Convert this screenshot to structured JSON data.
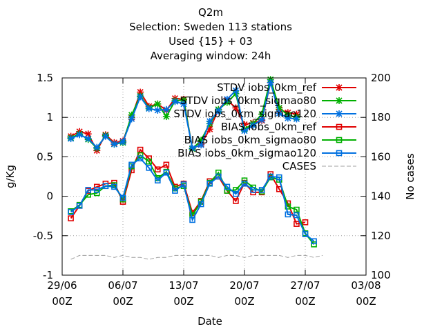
{
  "header": {
    "title": "Q2m",
    "selection": "Selection: Sweden    113 stations",
    "used": "Used {15} + 03",
    "window": "Averaging window: 24h"
  },
  "colors": {
    "red": "#e00000",
    "green": "#00b000",
    "blue": "#0070e0",
    "cases": "#a0a0a0"
  },
  "chart_data": {
    "type": "line",
    "xlabel": "Date",
    "ylabel": "g/Kg",
    "y2label": "No cases",
    "ylim": [
      -1,
      1.5
    ],
    "y2lim": [
      100,
      200
    ],
    "yticks": [
      "1.5",
      "1",
      "0.5",
      "0",
      "-0.5",
      "-1"
    ],
    "y2ticks": [
      "200",
      "180",
      "160",
      "140",
      "120",
      "100"
    ],
    "xticks": [
      {
        "date": "29/06",
        "hour": "00Z"
      },
      {
        "date": "06/07",
        "hour": "00Z"
      },
      {
        "date": "13/07",
        "hour": "00Z"
      },
      {
        "date": "20/07",
        "hour": "00Z"
      },
      {
        "date": "27/07",
        "hour": "00Z"
      },
      {
        "date": "03/08",
        "hour": "00Z"
      }
    ],
    "x": [
      "2024-06-30",
      "2024-07-01",
      "2024-07-02",
      "2024-07-03",
      "2024-07-04",
      "2024-07-05",
      "2024-07-06",
      "2024-07-07",
      "2024-07-08",
      "2024-07-09",
      "2024-07-10",
      "2024-07-11",
      "2024-07-12",
      "2024-07-13",
      "2024-07-14",
      "2024-07-15",
      "2024-07-16",
      "2024-07-17",
      "2024-07-18",
      "2024-07-19",
      "2024-07-20",
      "2024-07-21",
      "2024-07-22",
      "2024-07-23",
      "2024-07-24",
      "2024-07-25",
      "2024-07-26",
      "2024-07-27",
      "2024-07-28",
      "2024-07-29"
    ],
    "grid": true,
    "legend_position": "top-right",
    "series": [
      {
        "name": "STDV iobs_0km_ref",
        "color_key": "red",
        "marker": "star",
        "axis": "y",
        "values": [
          0.76,
          0.82,
          0.79,
          0.58,
          0.78,
          0.68,
          0.7,
          1.0,
          1.32,
          1.14,
          1.17,
          1.09,
          1.24,
          1.23,
          0.6,
          0.66,
          0.85,
          1.1,
          1.22,
          1.12,
          0.91,
          0.93,
          0.96,
          1.44,
          1.1,
          1.06,
          1.04,
          null,
          null,
          null
        ]
      },
      {
        "name": "STDV iobs_0km_sigmao80",
        "color_key": "green",
        "marker": "star",
        "axis": "y",
        "values": [
          0.74,
          0.79,
          0.72,
          0.61,
          0.77,
          0.66,
          0.68,
          1.03,
          1.27,
          1.12,
          1.17,
          1.01,
          1.21,
          1.22,
          0.6,
          0.71,
          0.92,
          1.1,
          1.19,
          1.3,
          0.85,
          0.92,
          1.04,
          1.48,
          1.12,
          1.03,
          1.0,
          null,
          null,
          null
        ]
      },
      {
        "name": "STDV iobs_0km_sigmao120",
        "color_key": "blue",
        "marker": "star",
        "axis": "y",
        "values": [
          0.73,
          0.78,
          0.73,
          0.62,
          0.76,
          0.66,
          0.69,
          0.98,
          1.26,
          1.11,
          1.09,
          1.1,
          1.2,
          1.17,
          0.61,
          0.65,
          0.95,
          1.08,
          1.23,
          1.34,
          0.83,
          0.9,
          0.97,
          1.44,
          1.05,
          0.99,
          0.98,
          null,
          null,
          null
        ]
      },
      {
        "name": "BIAS iobs_0km_ref",
        "color_key": "red",
        "marker": "square",
        "axis": "y",
        "values": [
          -0.28,
          -0.12,
          0.07,
          0.12,
          0.16,
          0.17,
          -0.07,
          0.33,
          0.59,
          0.48,
          0.34,
          0.4,
          0.12,
          0.16,
          -0.21,
          -0.06,
          0.19,
          0.25,
          0.07,
          -0.06,
          0.17,
          0.05,
          0.05,
          0.28,
          0.09,
          -0.09,
          -0.35,
          -0.33,
          null,
          null
        ]
      },
      {
        "name": "BIAS iobs_0km_sigmao80",
        "color_key": "green",
        "marker": "square",
        "axis": "y",
        "values": [
          -0.19,
          -0.11,
          0.02,
          0.04,
          0.13,
          0.14,
          -0.04,
          0.38,
          0.52,
          0.44,
          0.23,
          0.31,
          0.1,
          0.13,
          -0.24,
          -0.07,
          0.17,
          0.3,
          0.07,
          0.08,
          0.2,
          0.11,
          0.06,
          0.24,
          0.21,
          -0.13,
          -0.17,
          -0.47,
          -0.61,
          null
        ]
      },
      {
        "name": "BIAS iobs_0km_sigmao120",
        "color_key": "blue",
        "marker": "square",
        "axis": "y",
        "values": [
          -0.2,
          -0.12,
          0.08,
          0.08,
          0.13,
          0.12,
          -0.02,
          0.4,
          0.48,
          0.36,
          0.2,
          0.3,
          0.07,
          0.15,
          -0.3,
          -0.1,
          0.16,
          0.25,
          0.12,
          0.03,
          0.16,
          0.08,
          0.08,
          0.25,
          0.24,
          -0.23,
          -0.24,
          -0.48,
          -0.57,
          null
        ]
      },
      {
        "name": "CASES",
        "color_key": "cases",
        "marker": "none",
        "dashed": true,
        "axis": "y2",
        "values": [
          108,
          110,
          110,
          110,
          110,
          109,
          110,
          109,
          109,
          108,
          109,
          109,
          110,
          110,
          110,
          110,
          110,
          109,
          110,
          110,
          109,
          110,
          110,
          110,
          110,
          109,
          110,
          110,
          109,
          110
        ]
      }
    ]
  }
}
